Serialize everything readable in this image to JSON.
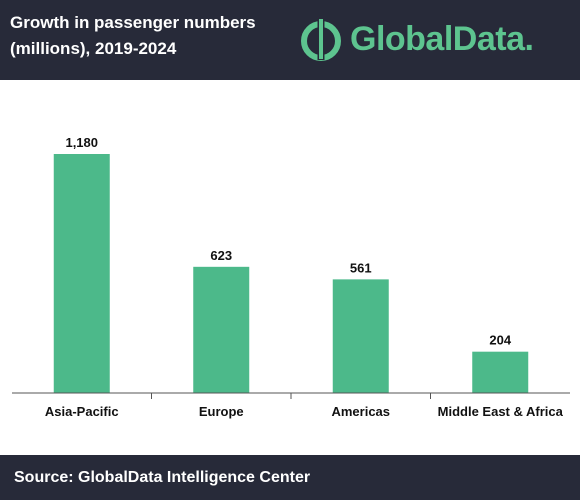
{
  "header": {
    "title_line1": "Growth in passenger numbers",
    "title_line2": "(millions), 2019-2024"
  },
  "logo": {
    "brand": "GlobalData",
    "dot": "."
  },
  "footer": {
    "source": "Source:  GlobalData Intelligence Center"
  },
  "colors": {
    "bar": "#4cb98a",
    "header_bg": "#272a39",
    "brand_green": "#5dc48f"
  },
  "chart_data": {
    "type": "bar",
    "title": "Growth in passenger numbers (millions), 2019-2024",
    "categories": [
      "Asia-Pacific",
      "Europe",
      "Americas",
      "Middle East & Africa"
    ],
    "values": [
      1180,
      623,
      561,
      204
    ],
    "value_labels": [
      "1,180",
      "623",
      "561",
      "204"
    ],
    "xlabel": "",
    "ylabel": "",
    "ylim": [
      0,
      1180
    ],
    "grid": false,
    "legend": "none"
  }
}
